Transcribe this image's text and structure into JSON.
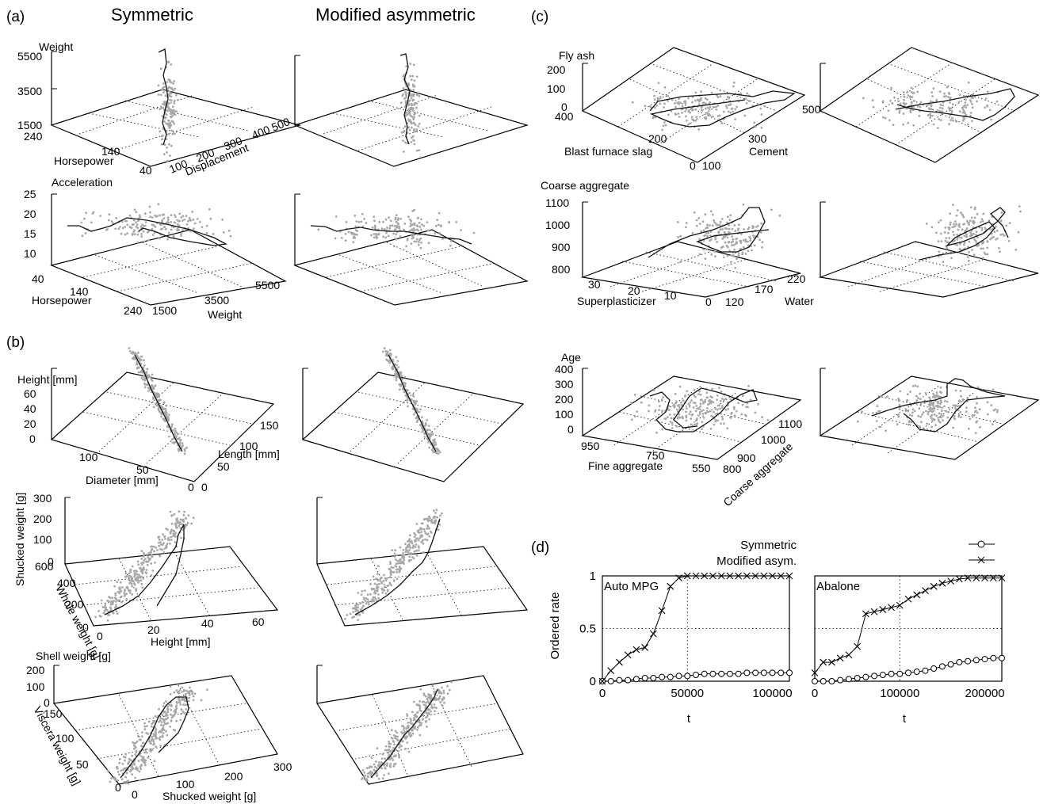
{
  "labels": {
    "panel_a": "(a)",
    "panel_b": "(b)",
    "panel_c": "(c)",
    "panel_d": "(d)",
    "col_symmetric": "Symmetric",
    "col_modified": "Modified asymmetric"
  },
  "panel_a": {
    "plot1": {
      "z_title": "Weight",
      "z_ticks": [
        "5500",
        "3500",
        "1500"
      ],
      "left_title": "Horsepower",
      "left_ticks": [
        "240",
        "140",
        "40"
      ],
      "right_title": "Displacement",
      "right_ticks": [
        "100",
        "200",
        "300",
        "400",
        "500"
      ]
    },
    "plot2": {
      "z_title": "Acceleration",
      "z_ticks": [
        "25",
        "20",
        "15",
        "10"
      ],
      "left_title": "Horsepower",
      "left_ticks": [
        "40",
        "140",
        "240"
      ],
      "right_title": "Weight",
      "right_ticks": [
        "1500",
        "3500",
        "5500"
      ]
    }
  },
  "panel_b": {
    "plot1": {
      "z_title": "Height [mm]",
      "z_ticks": [
        "60",
        "40",
        "20",
        "0"
      ],
      "left_title": "Diameter [mm]",
      "left_ticks": [
        "100",
        "50",
        "0"
      ],
      "right_title": "Length [mm]",
      "right_ticks": [
        "0",
        "50",
        "100",
        "150"
      ]
    },
    "plot2": {
      "z_title": "Shucked weight [g]",
      "z_ticks": [
        "300",
        "200",
        "100",
        "0"
      ],
      "left_title": "Whole weight [g]",
      "left_ticks": [
        "600",
        "400",
        "200",
        "0"
      ],
      "right_title": "Height [mm]",
      "right_ticks": [
        "0",
        "20",
        "40",
        "60"
      ]
    },
    "plot3": {
      "z_title": "Shell weight [g]",
      "z_ticks": [
        "200",
        "100",
        "0"
      ],
      "left_title": "Viscera weight [g]",
      "left_ticks": [
        "150",
        "100",
        "50",
        "0"
      ],
      "right_title": "Shucked weight [g]",
      "right_ticks": [
        "0",
        "100",
        "200",
        "300"
      ]
    }
  },
  "panel_c": {
    "plot1": {
      "z_title": "Fly ash",
      "z_ticks": [
        "200",
        "100",
        "0"
      ],
      "left_title": "Blast furnace slag",
      "left_ticks": [
        "400",
        "200",
        "0"
      ],
      "right_title": "Cement",
      "right_ticks": [
        "100",
        "300",
        "500"
      ]
    },
    "plot2": {
      "z_title": "Coarse aggregate",
      "z_ticks": [
        "1100",
        "1000",
        "900",
        "800"
      ],
      "left_title": "Superplasticizer",
      "left_ticks": [
        "30",
        "20",
        "10",
        "0"
      ],
      "right_title": "Water",
      "right_ticks": [
        "120",
        "170",
        "220"
      ]
    },
    "plot3": {
      "z_title": "Age",
      "z_ticks": [
        "400",
        "300",
        "200",
        "100",
        "0"
      ],
      "left_title": "Fine aggregate",
      "left_ticks": [
        "950",
        "750",
        "550"
      ],
      "right_title": "Coarse aggregate",
      "right_ticks": [
        "800",
        "900",
        "1000",
        "1100"
      ]
    }
  },
  "chart_data": {
    "type": "line",
    "ylabel": "Ordered rate",
    "xlabel": "t",
    "ylim": [
      0,
      1
    ],
    "yticks": [
      "0",
      "0.5",
      "1"
    ],
    "legend_placement": "top-right",
    "legend": [
      {
        "name": "Symmetric",
        "marker": "circle"
      },
      {
        "name": "Modified asym.",
        "marker": "x"
      }
    ],
    "subplots": [
      {
        "title": "Auto MPG",
        "xlim": [
          0,
          110000
        ],
        "xticks": [
          "0",
          "50000",
          "100000"
        ],
        "series": [
          {
            "name": "Symmetric",
            "x": [
              0,
              5000,
              10000,
              15000,
              20000,
              25000,
              30000,
              35000,
              40000,
              45000,
              50000,
              55000,
              60000,
              65000,
              70000,
              75000,
              80000,
              85000,
              90000,
              95000,
              100000,
              105000,
              110000
            ],
            "y": [
              0,
              0,
              0.01,
              0.01,
              0.02,
              0.03,
              0.03,
              0.04,
              0.04,
              0.05,
              0.05,
              0.06,
              0.07,
              0.07,
              0.07,
              0.07,
              0.07,
              0.08,
              0.08,
              0.08,
              0.08,
              0.08,
              0.08
            ]
          },
          {
            "name": "Modified asym.",
            "x": [
              0,
              5000,
              10000,
              15000,
              20000,
              25000,
              30000,
              35000,
              40000,
              45000,
              50000,
              55000,
              60000,
              65000,
              70000,
              75000,
              80000,
              85000,
              90000,
              95000,
              100000,
              105000,
              110000
            ],
            "y": [
              0,
              0.1,
              0.18,
              0.25,
              0.3,
              0.32,
              0.45,
              0.67,
              0.9,
              0.98,
              1,
              1,
              1,
              1,
              1,
              1,
              1,
              1,
              1,
              1,
              1,
              1,
              1
            ]
          }
        ]
      },
      {
        "title": "Abalone",
        "xlim": [
          0,
          220000
        ],
        "xticks": [
          "0",
          "100000",
          "200000"
        ],
        "series": [
          {
            "name": "Symmetric",
            "x": [
              0,
              10000,
              20000,
              30000,
              40000,
              50000,
              60000,
              70000,
              80000,
              90000,
              100000,
              110000,
              120000,
              130000,
              140000,
              150000,
              160000,
              170000,
              180000,
              190000,
              200000,
              210000,
              220000
            ],
            "y": [
              0,
              0,
              0,
              0.01,
              0.02,
              0.03,
              0.04,
              0.05,
              0.06,
              0.07,
              0.07,
              0.08,
              0.09,
              0.1,
              0.12,
              0.14,
              0.16,
              0.18,
              0.19,
              0.2,
              0.21,
              0.22,
              0.22
            ]
          },
          {
            "name": "Modified asym.",
            "x": [
              0,
              10000,
              20000,
              30000,
              40000,
              50000,
              60000,
              70000,
              80000,
              90000,
              100000,
              110000,
              120000,
              130000,
              140000,
              150000,
              160000,
              170000,
              180000,
              190000,
              200000,
              210000,
              220000
            ],
            "y": [
              0.08,
              0.18,
              0.18,
              0.22,
              0.25,
              0.33,
              0.64,
              0.66,
              0.68,
              0.7,
              0.72,
              0.78,
              0.82,
              0.86,
              0.9,
              0.93,
              0.95,
              0.97,
              0.98,
              0.98,
              0.98,
              0.98,
              0.98
            ]
          }
        ]
      }
    ]
  }
}
